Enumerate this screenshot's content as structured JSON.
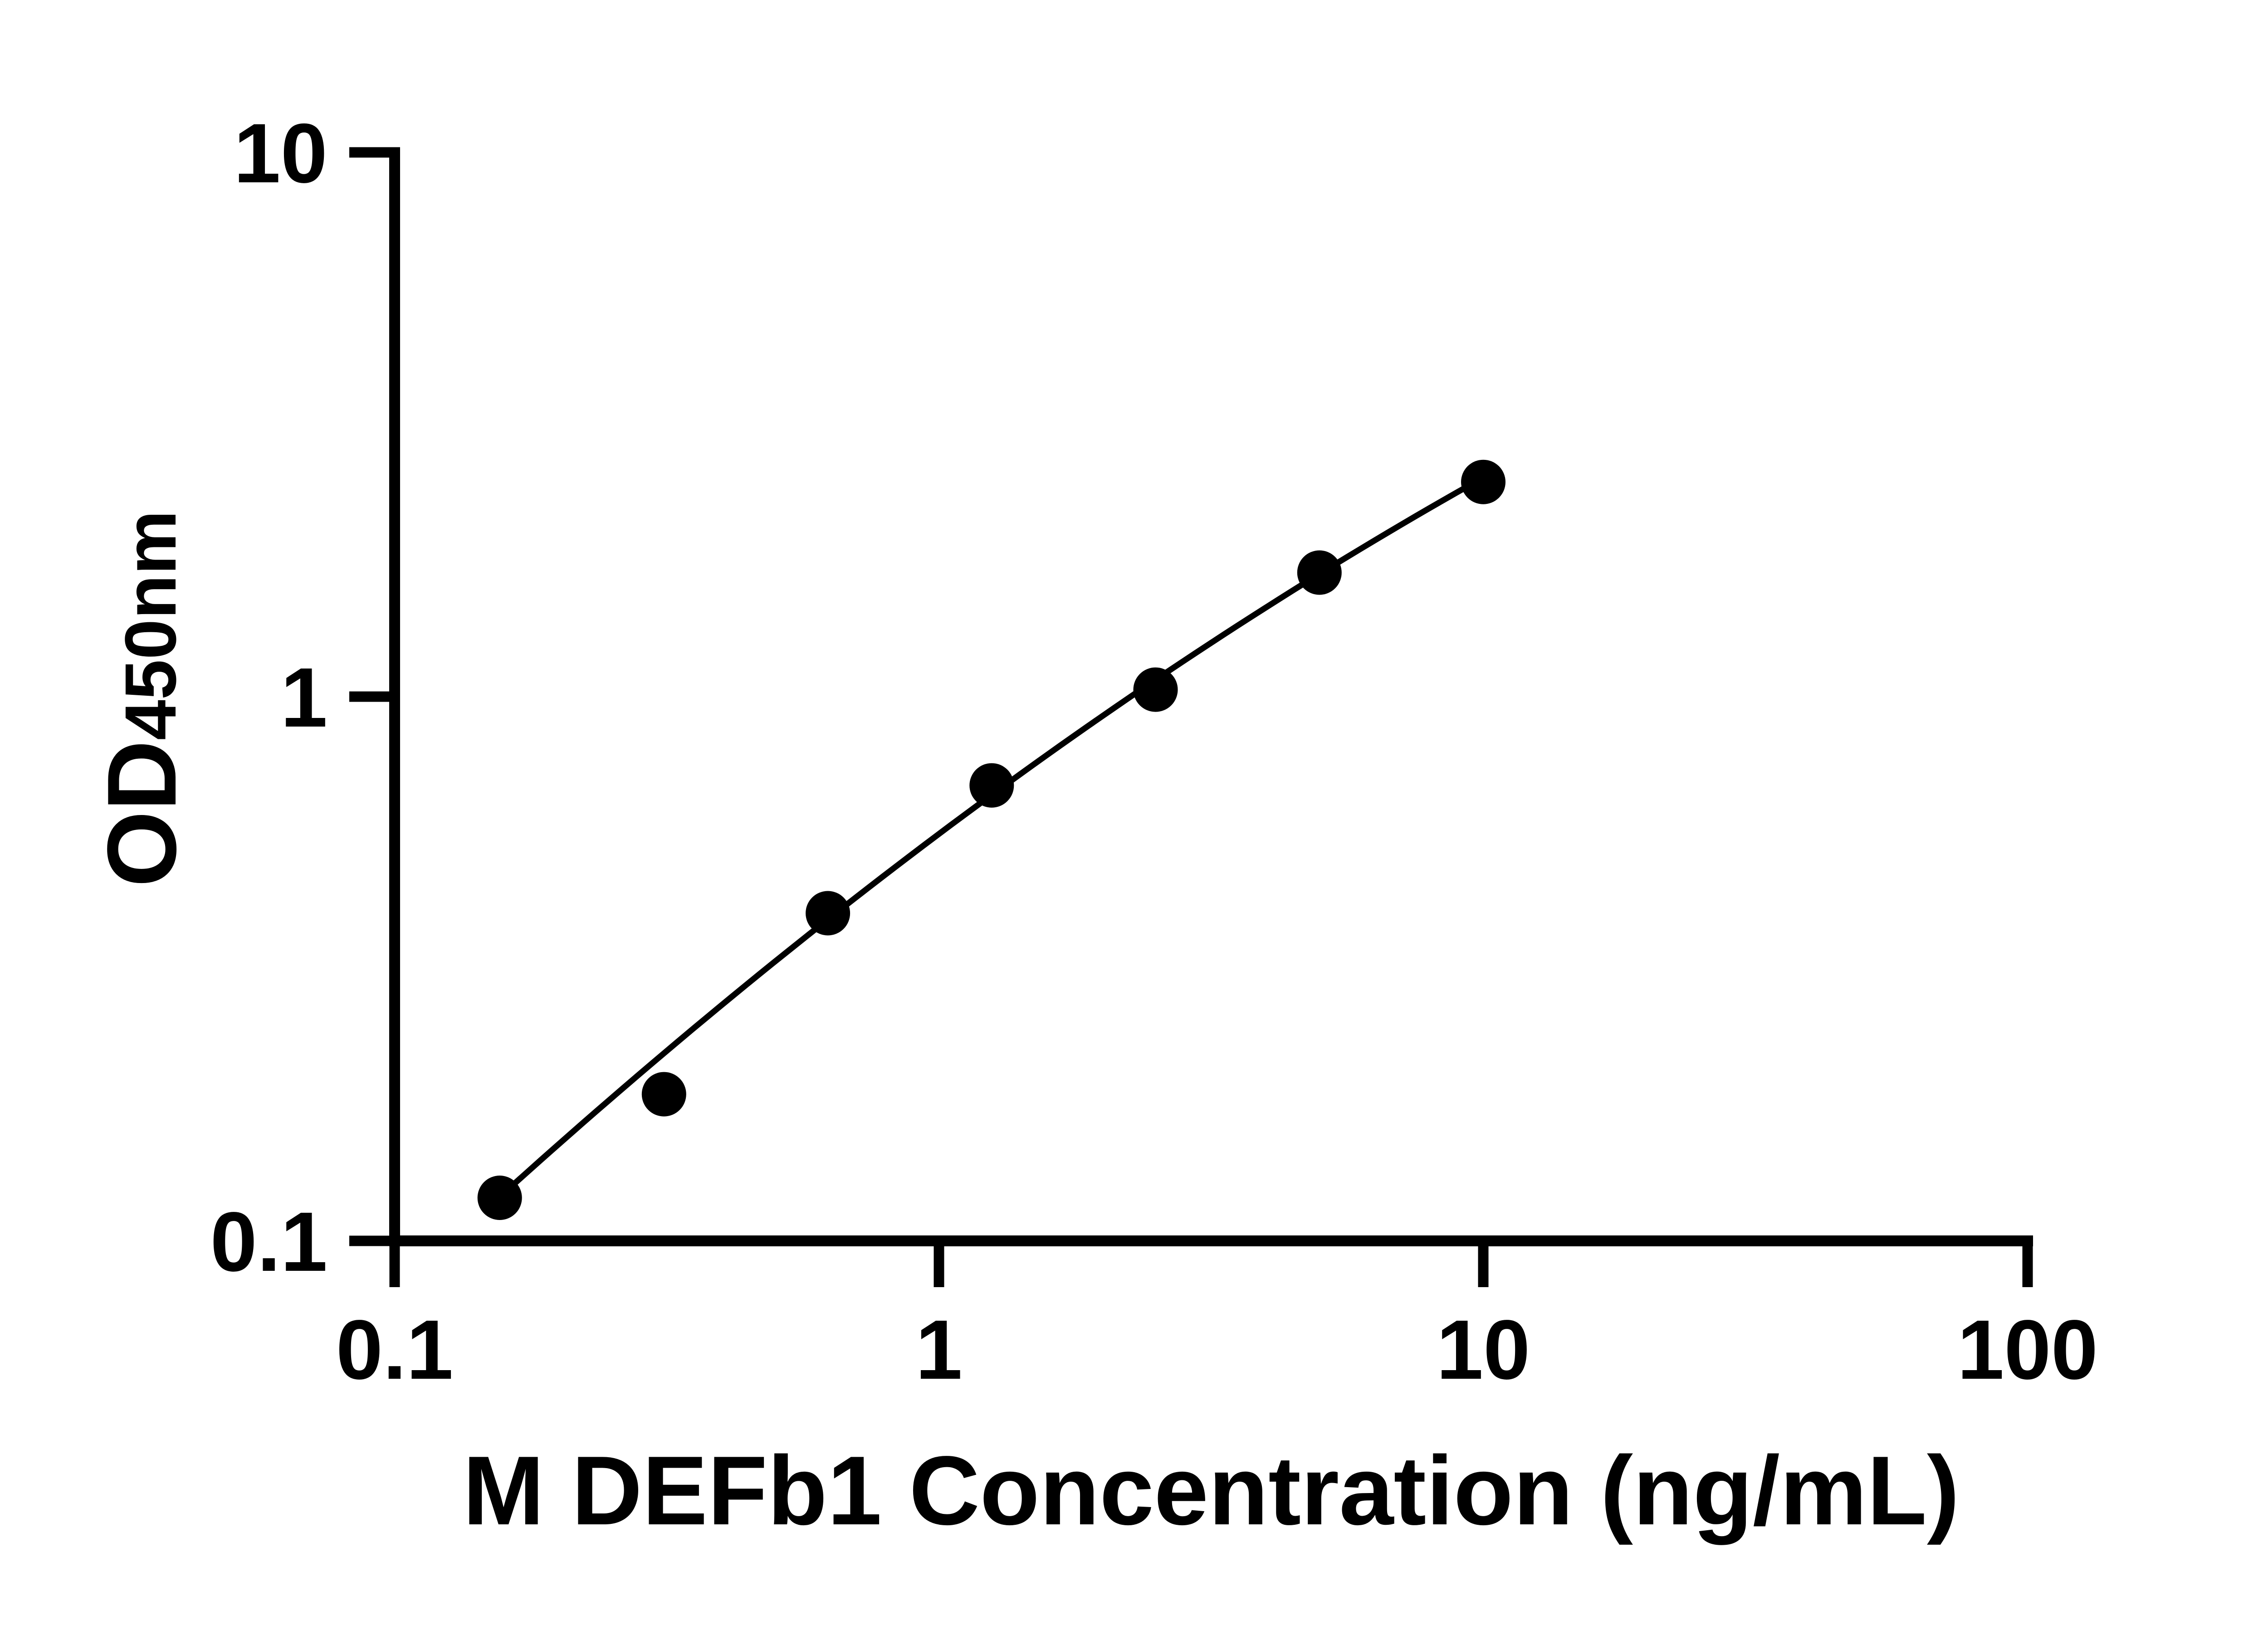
{
  "chart_data": {
    "type": "scatter",
    "xlabel": "M DEFb1 Concentration (ng/mL)",
    "ylabel_main": "OD",
    "ylabel_sub": "450nm",
    "x": [
      0.156,
      0.3125,
      0.625,
      1.25,
      2.5,
      5,
      10
    ],
    "y": [
      0.12,
      0.186,
      0.4,
      0.687,
      1.03,
      1.69,
      2.48
    ],
    "xlim": [
      0.1,
      100
    ],
    "ylim": [
      0.1,
      10
    ],
    "xscale": "log",
    "yscale": "log",
    "x_ticks": [
      "0.1",
      "1",
      "10",
      "100"
    ],
    "x_tick_values": [
      0.1,
      1,
      10,
      100
    ],
    "y_ticks": [
      "0.1",
      "1",
      "10"
    ],
    "y_tick_values": [
      0.1,
      1,
      10
    ],
    "grid": "off",
    "legend": "none",
    "marker_color": "#000000",
    "line_color": "#000000",
    "axis_color": "#000000",
    "background_color": "#ffffff",
    "fit_curve_loglog_quadratic": {
      "a": -0.25228,
      "b": 0.74976,
      "c": -0.09491,
      "u_min": -0.80688,
      "u_max": 1.0
    }
  }
}
